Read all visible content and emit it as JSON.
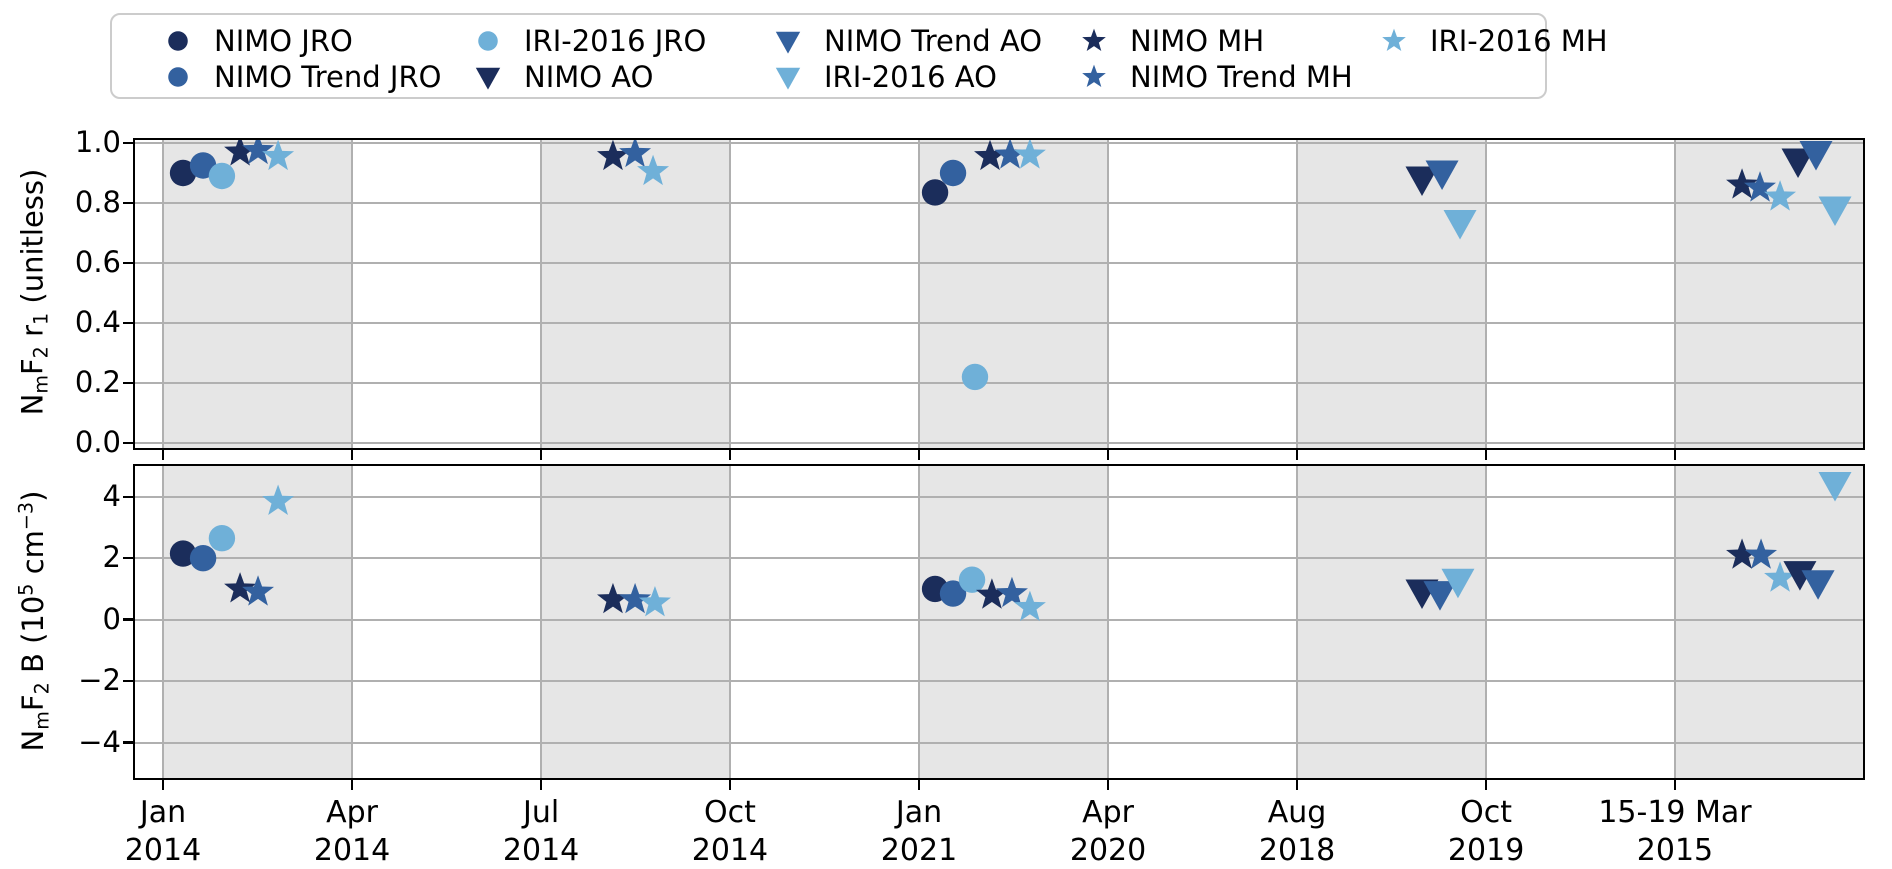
{
  "figure": {
    "kind": "matplotlib-style scatter figure",
    "background": "#ffffff"
  },
  "colors": {
    "NIMO": "#1b2d5b",
    "NIMO Trend": "#33619f",
    "IRI-2016": "#6fb0d8",
    "band": "#e6e6e6",
    "grid": "#b0b0b0",
    "frame": "#000000",
    "legend_border": "#cccccc",
    "text": "#000000"
  },
  "legend": {
    "items": [
      {
        "label": "NIMO JRO",
        "series": "NIMO",
        "marker": "circle"
      },
      {
        "label": "NIMO Trend JRO",
        "series": "NIMO Trend",
        "marker": "circle"
      },
      {
        "label": "IRI-2016 JRO",
        "series": "IRI-2016",
        "marker": "circle"
      },
      {
        "label": "NIMO AO",
        "series": "NIMO",
        "marker": "triangle"
      },
      {
        "label": "NIMO Trend AO",
        "series": "NIMO Trend",
        "marker": "triangle"
      },
      {
        "label": "IRI-2016 AO",
        "series": "IRI-2016",
        "marker": "triangle"
      },
      {
        "label": "NIMO MH",
        "series": "NIMO",
        "marker": "star"
      },
      {
        "label": "NIMO Trend MH",
        "series": "NIMO Trend",
        "marker": "star"
      },
      {
        "label": "IRI-2016 MH",
        "series": "IRI-2016",
        "marker": "star"
      }
    ]
  },
  "chart_data": {
    "type": "scatter",
    "grid": true,
    "legend_position": "top",
    "marker_meaning": {
      "circle": "JRO",
      "triangle": "AO",
      "star": "MH"
    },
    "x_axis": {
      "ticks": [
        {
          "month": "Jan",
          "year": "2014",
          "f": 0.0162
        },
        {
          "month": "Apr",
          "year": "2014",
          "f": 0.1256
        },
        {
          "month": "Jul",
          "year": "2014",
          "f": 0.235
        },
        {
          "month": "Oct",
          "year": "2014",
          "f": 0.3443
        },
        {
          "month": "Jan",
          "year": "2021",
          "f": 0.4537
        },
        {
          "month": "Apr",
          "year": "2020",
          "f": 0.5631
        },
        {
          "month": "Aug",
          "year": "2018",
          "f": 0.6725
        },
        {
          "month": "Oct",
          "year": "2019",
          "f": 0.7819
        },
        {
          "month": "15-19 Mar",
          "year": "2015",
          "f": 0.8912
        }
      ],
      "shaded_bands_f": [
        [
          0.0162,
          0.1256
        ],
        [
          0.235,
          0.3443
        ],
        [
          0.4537,
          0.5631
        ],
        [
          0.6725,
          0.7819
        ],
        [
          0.8912,
          1.0
        ]
      ]
    },
    "panels": [
      {
        "name": "r1",
        "ylabel_plain": "NmF2 r1 (unitless)",
        "ylabel_rich": [
          {
            "t": "N"
          },
          {
            "t": "m",
            "s": "sub"
          },
          {
            "t": "F"
          },
          {
            "t": "2",
            "s": "sub"
          },
          {
            "t": " r"
          },
          {
            "t": "1",
            "s": "sub"
          },
          {
            "t": " (unitless)"
          }
        ],
        "ylim": [
          -0.017,
          1.01
        ],
        "yticks": [
          {
            "label": "1.0",
            "v": 1.0
          },
          {
            "label": "0.8",
            "v": 0.8
          },
          {
            "label": "0.6",
            "v": 0.6
          },
          {
            "label": "0.4",
            "v": 0.4
          },
          {
            "label": "0.2",
            "v": 0.2
          },
          {
            "label": "0.0",
            "v": 0.0
          }
        ],
        "points": [
          {
            "series": "NIMO",
            "station": "JRO",
            "marker": "circle",
            "campaign": "Jan 2014",
            "f": 0.0278,
            "v": 0.9
          },
          {
            "series": "NIMO Trend",
            "station": "JRO",
            "marker": "circle",
            "campaign": "Jan 2014",
            "f": 0.0394,
            "v": 0.925
          },
          {
            "series": "IRI-2016",
            "station": "JRO",
            "marker": "circle",
            "campaign": "Jan 2014",
            "f": 0.0503,
            "v": 0.89
          },
          {
            "series": "NIMO",
            "station": "MH",
            "marker": "star",
            "campaign": "Jan 2014",
            "f": 0.0608,
            "v": 0.97
          },
          {
            "series": "NIMO Trend",
            "station": "MH",
            "marker": "star",
            "campaign": "Jan 2014",
            "f": 0.0712,
            "v": 0.975
          },
          {
            "series": "IRI-2016",
            "station": "MH",
            "marker": "star",
            "campaign": "Jan 2014",
            "f": 0.0828,
            "v": 0.955
          },
          {
            "series": "NIMO",
            "station": "MH",
            "marker": "star",
            "campaign": "Jul 2014",
            "f": 0.2766,
            "v": 0.955
          },
          {
            "series": "NIMO Trend",
            "station": "MH",
            "marker": "star",
            "campaign": "Jul 2014",
            "f": 0.2894,
            "v": 0.965
          },
          {
            "series": "IRI-2016",
            "station": "MH",
            "marker": "star",
            "campaign": "Jul 2014",
            "f": 0.2998,
            "v": 0.905
          },
          {
            "series": "NIMO",
            "station": "JRO",
            "marker": "circle",
            "campaign": "Jan 2021",
            "f": 0.463,
            "v": 0.835
          },
          {
            "series": "NIMO Trend",
            "station": "JRO",
            "marker": "circle",
            "campaign": "Jan 2021",
            "f": 0.4734,
            "v": 0.9
          },
          {
            "series": "IRI-2016",
            "station": "JRO",
            "marker": "circle",
            "campaign": "Jan 2021",
            "f": 0.4861,
            "v": 0.22
          },
          {
            "series": "NIMO",
            "station": "MH",
            "marker": "star",
            "campaign": "Jan 2021",
            "f": 0.4948,
            "v": 0.955
          },
          {
            "series": "NIMO Trend",
            "station": "MH",
            "marker": "star",
            "campaign": "Jan 2021",
            "f": 0.5064,
            "v": 0.96
          },
          {
            "series": "IRI-2016",
            "station": "MH",
            "marker": "star",
            "campaign": "Jan 2021",
            "f": 0.5179,
            "v": 0.96
          },
          {
            "series": "NIMO",
            "station": "AO",
            "marker": "triangle",
            "campaign": "Oct 2019",
            "f": 0.7448,
            "v": 0.88
          },
          {
            "series": "NIMO Trend",
            "station": "AO",
            "marker": "triangle",
            "campaign": "Oct 2019",
            "f": 0.7564,
            "v": 0.9
          },
          {
            "series": "IRI-2016",
            "station": "AO",
            "marker": "triangle",
            "campaign": "Oct 2019",
            "f": 0.7668,
            "v": 0.735
          },
          {
            "series": "NIMO",
            "station": "MH",
            "marker": "star",
            "campaign": "15-19 Mar 2015",
            "f": 0.93,
            "v": 0.86
          },
          {
            "series": "NIMO Trend",
            "station": "MH",
            "marker": "star",
            "campaign": "15-19 Mar 2015",
            "f": 0.9404,
            "v": 0.85
          },
          {
            "series": "IRI-2016",
            "station": "MH",
            "marker": "star",
            "campaign": "15-19 Mar 2015",
            "f": 0.952,
            "v": 0.82
          },
          {
            "series": "NIMO",
            "station": "AO",
            "marker": "triangle",
            "campaign": "15-19 Mar 2015",
            "f": 0.9624,
            "v": 0.94
          },
          {
            "series": "NIMO Trend",
            "station": "AO",
            "marker": "triangle",
            "campaign": "15-19 Mar 2015",
            "f": 0.9728,
            "v": 0.965
          },
          {
            "series": "IRI-2016",
            "station": "AO",
            "marker": "triangle",
            "campaign": "15-19 Mar 2015",
            "f": 0.9838,
            "v": 0.78
          }
        ]
      },
      {
        "name": "B",
        "ylabel_plain": "NmF2 B (10^5 cm^-3)",
        "ylabel_rich": [
          {
            "t": "N"
          },
          {
            "t": "m",
            "s": "sub"
          },
          {
            "t": "F"
          },
          {
            "t": "2",
            "s": "sub"
          },
          {
            "t": " B (10"
          },
          {
            "t": "5",
            "s": "sup"
          },
          {
            "t": " cm"
          },
          {
            "t": "−3",
            "s": "sup"
          },
          {
            "t": ")"
          }
        ],
        "ylim": [
          -5.15,
          5.0
        ],
        "yticks": [
          {
            "label": "4",
            "v": 4
          },
          {
            "label": "2",
            "v": 2
          },
          {
            "label": "0",
            "v": 0
          },
          {
            "label": "−2",
            "v": -2
          },
          {
            "label": "−4",
            "v": -4
          }
        ],
        "points": [
          {
            "series": "NIMO",
            "station": "JRO",
            "marker": "circle",
            "campaign": "Jan 2014",
            "f": 0.0278,
            "v": 2.15
          },
          {
            "series": "NIMO Trend",
            "station": "JRO",
            "marker": "circle",
            "campaign": "Jan 2014",
            "f": 0.0394,
            "v": 2.0
          },
          {
            "series": "IRI-2016",
            "station": "JRO",
            "marker": "circle",
            "campaign": "Jan 2014",
            "f": 0.0503,
            "v": 2.65
          },
          {
            "series": "NIMO",
            "station": "MH",
            "marker": "star",
            "campaign": "Jan 2014",
            "f": 0.0608,
            "v": 1.0
          },
          {
            "series": "NIMO Trend",
            "station": "MH",
            "marker": "star",
            "campaign": "Jan 2014",
            "f": 0.0712,
            "v": 0.9
          },
          {
            "series": "IRI-2016",
            "station": "MH",
            "marker": "star",
            "campaign": "Jan 2014",
            "f": 0.0828,
            "v": 3.85
          },
          {
            "series": "NIMO",
            "station": "MH",
            "marker": "star",
            "campaign": "Jul 2014",
            "f": 0.2766,
            "v": 0.65
          },
          {
            "series": "NIMO Trend",
            "station": "MH",
            "marker": "star",
            "campaign": "Jul 2014",
            "f": 0.2894,
            "v": 0.65
          },
          {
            "series": "IRI-2016",
            "station": "MH",
            "marker": "star",
            "campaign": "Jul 2014",
            "f": 0.3009,
            "v": 0.55
          },
          {
            "series": "NIMO",
            "station": "JRO",
            "marker": "circle",
            "campaign": "Jan 2021",
            "f": 0.463,
            "v": 1.0
          },
          {
            "series": "NIMO Trend",
            "station": "JRO",
            "marker": "circle",
            "campaign": "Jan 2021",
            "f": 0.4734,
            "v": 0.85
          },
          {
            "series": "IRI-2016",
            "station": "JRO",
            "marker": "circle",
            "campaign": "Jan 2021",
            "f": 0.4844,
            "v": 1.3
          },
          {
            "series": "NIMO",
            "station": "MH",
            "marker": "star",
            "campaign": "Jan 2021",
            "f": 0.4959,
            "v": 0.8
          },
          {
            "series": "NIMO Trend",
            "station": "MH",
            "marker": "star",
            "campaign": "Jan 2021",
            "f": 0.5075,
            "v": 0.85
          },
          {
            "series": "IRI-2016",
            "station": "MH",
            "marker": "star",
            "campaign": "Jan 2021",
            "f": 0.5179,
            "v": 0.4
          },
          {
            "series": "NIMO",
            "station": "AO",
            "marker": "triangle",
            "campaign": "Oct 2019",
            "f": 0.7448,
            "v": 0.9
          },
          {
            "series": "NIMO Trend",
            "station": "AO",
            "marker": "triangle",
            "campaign": "Oct 2019",
            "f": 0.7552,
            "v": 0.85
          },
          {
            "series": "IRI-2016",
            "station": "AO",
            "marker": "triangle",
            "campaign": "Oct 2019",
            "f": 0.7656,
            "v": 1.25
          },
          {
            "series": "NIMO",
            "station": "MH",
            "marker": "star",
            "campaign": "15-19 Mar 2015",
            "f": 0.93,
            "v": 2.1
          },
          {
            "series": "NIMO Trend",
            "station": "MH",
            "marker": "star",
            "campaign": "15-19 Mar 2015",
            "f": 0.941,
            "v": 2.1
          },
          {
            "series": "IRI-2016",
            "station": "MH",
            "marker": "star",
            "campaign": "15-19 Mar 2015",
            "f": 0.952,
            "v": 1.35
          },
          {
            "series": "NIMO",
            "station": "AO",
            "marker": "triangle",
            "campaign": "15-19 Mar 2015",
            "f": 0.9635,
            "v": 1.5
          },
          {
            "series": "NIMO Trend",
            "station": "AO",
            "marker": "triangle",
            "campaign": "15-19 Mar 2015",
            "f": 0.974,
            "v": 1.2
          },
          {
            "series": "IRI-2016",
            "station": "AO",
            "marker": "triangle",
            "campaign": "15-19 Mar 2015",
            "f": 0.9838,
            "v": 4.4
          }
        ]
      }
    ]
  }
}
